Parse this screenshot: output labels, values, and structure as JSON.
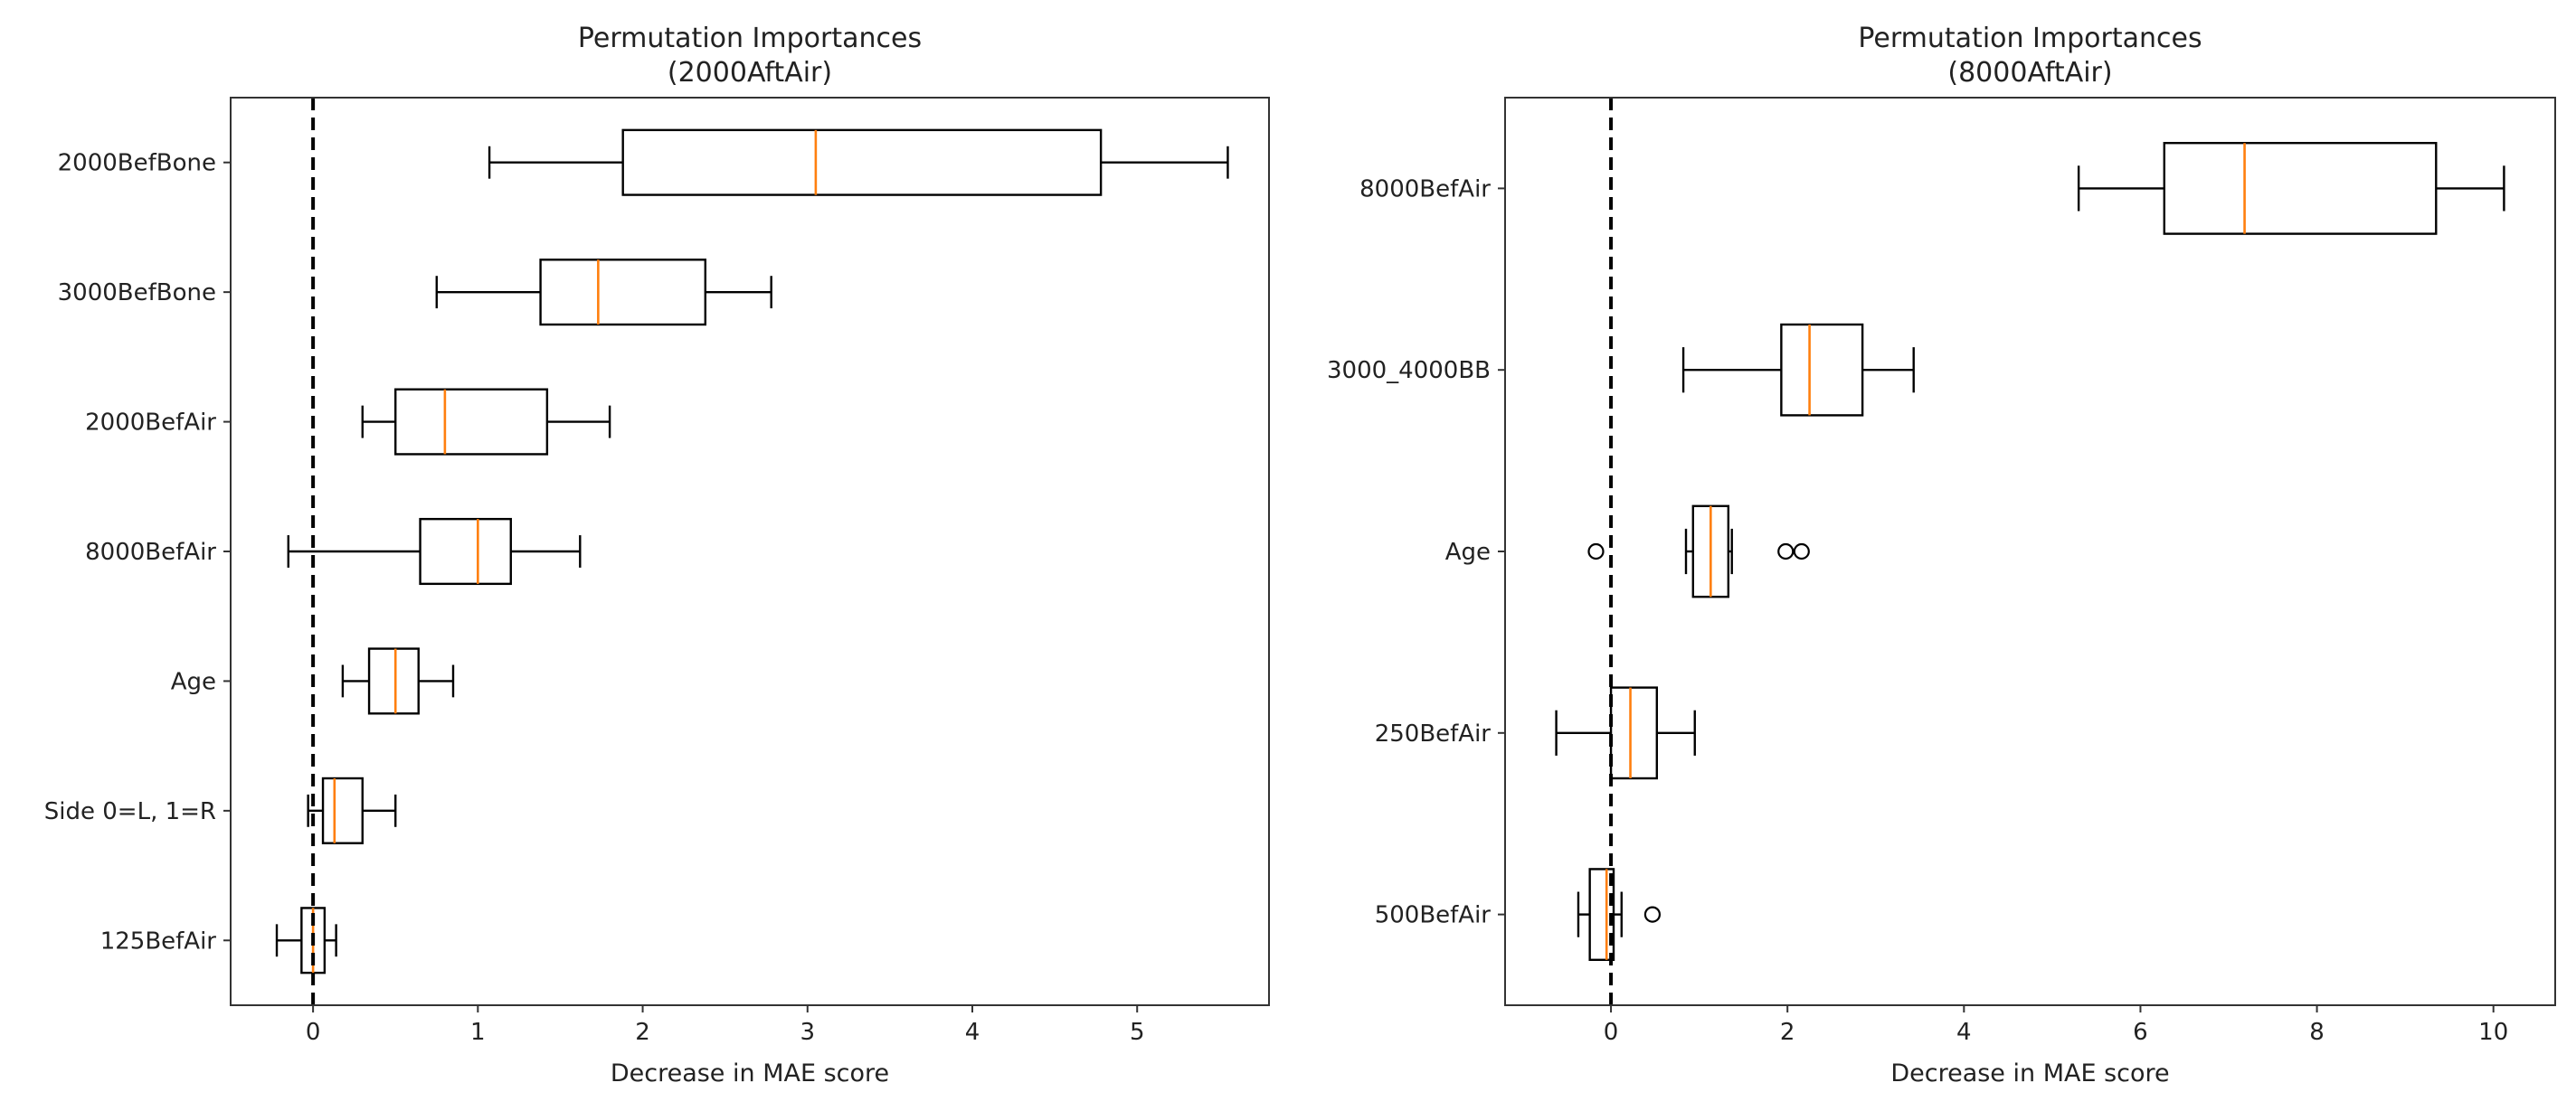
{
  "chart_data": [
    {
      "type": "boxplot",
      "orientation": "horizontal",
      "title": "Permutation Importances",
      "subtitle": "(2000AftAir)",
      "xlabel": "Decrease in MAE score",
      "ylabel": "",
      "xlim": [
        -0.5,
        5.8
      ],
      "xticks": [
        0,
        1,
        2,
        3,
        4,
        5
      ],
      "reference_line": {
        "x": 0,
        "style": "dashed",
        "color": "#000000"
      },
      "categories": [
        "2000BefBone",
        "3000BefBone",
        "2000BefAir",
        "8000BefAir",
        "Age",
        "Side 0=L, 1=R",
        "125BefAir"
      ],
      "boxes": [
        {
          "label": "2000BefBone",
          "whisker_low": 1.07,
          "q1": 1.88,
          "median": 3.05,
          "q3": 4.78,
          "whisker_high": 5.55,
          "outliers": []
        },
        {
          "label": "3000BefBone",
          "whisker_low": 0.75,
          "q1": 1.38,
          "median": 1.73,
          "q3": 2.38,
          "whisker_high": 2.78,
          "outliers": []
        },
        {
          "label": "2000BefAir",
          "whisker_low": 0.3,
          "q1": 0.5,
          "median": 0.8,
          "q3": 1.42,
          "whisker_high": 1.8,
          "outliers": []
        },
        {
          "label": "8000BefAir",
          "whisker_low": -0.15,
          "q1": 0.65,
          "median": 1.0,
          "q3": 1.2,
          "whisker_high": 1.62,
          "outliers": []
        },
        {
          "label": "Age",
          "whisker_low": 0.18,
          "q1": 0.34,
          "median": 0.5,
          "q3": 0.64,
          "whisker_high": 0.85,
          "outliers": []
        },
        {
          "label": "Side 0=L, 1=R",
          "whisker_low": -0.03,
          "q1": 0.06,
          "median": 0.13,
          "q3": 0.3,
          "whisker_high": 0.5,
          "outliers": []
        },
        {
          "label": "125BefAir",
          "whisker_low": -0.22,
          "q1": -0.07,
          "median": 0.0,
          "q3": 0.07,
          "whisker_high": 0.14,
          "outliers": []
        }
      ],
      "box_color": "#000000",
      "median_color": "#ff7f0e"
    },
    {
      "type": "boxplot",
      "orientation": "horizontal",
      "title": "Permutation Importances",
      "subtitle": "(8000AftAir)",
      "xlabel": "Decrease in MAE score",
      "ylabel": "",
      "xlim": [
        -1.2,
        10.7
      ],
      "xticks": [
        0,
        2,
        4,
        6,
        8,
        10
      ],
      "reference_line": {
        "x": 0,
        "style": "dashed",
        "color": "#000000"
      },
      "categories": [
        "8000BefAir",
        "3000_4000BB",
        "Age",
        "250BefAir",
        "500BefAir"
      ],
      "boxes": [
        {
          "label": "8000BefAir",
          "whisker_low": 5.3,
          "q1": 6.27,
          "median": 7.18,
          "q3": 9.35,
          "whisker_high": 10.12,
          "outliers": []
        },
        {
          "label": "3000_4000BB",
          "whisker_low": 0.82,
          "q1": 1.93,
          "median": 2.25,
          "q3": 2.85,
          "whisker_high": 3.43,
          "outliers": []
        },
        {
          "label": "Age",
          "whisker_low": 0.85,
          "q1": 0.93,
          "median": 1.13,
          "q3": 1.33,
          "whisker_high": 1.37,
          "outliers": [
            -0.17,
            1.98,
            2.16
          ]
        },
        {
          "label": "250BefAir",
          "whisker_low": -0.62,
          "q1": 0.0,
          "median": 0.22,
          "q3": 0.52,
          "whisker_high": 0.95,
          "outliers": []
        },
        {
          "label": "500BefAir",
          "whisker_low": -0.37,
          "q1": -0.24,
          "median": -0.05,
          "q3": 0.03,
          "whisker_high": 0.12,
          "outliers": [
            0.47
          ]
        }
      ],
      "box_color": "#000000",
      "median_color": "#ff7f0e"
    }
  ]
}
